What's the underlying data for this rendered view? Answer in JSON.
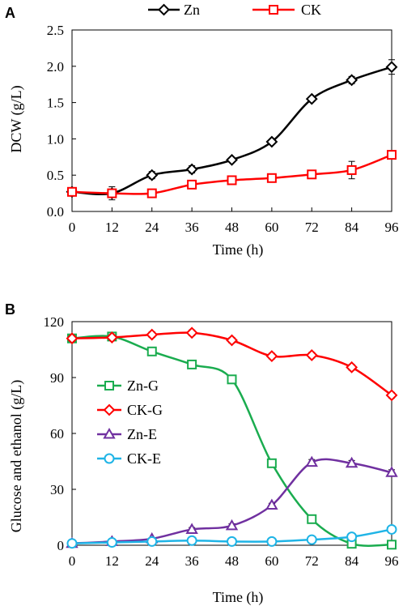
{
  "chart_data": [
    {
      "panel": "A",
      "type": "line",
      "xlabel": "Time (h)",
      "ylabel": "DCW (g/L)",
      "xlim": [
        0,
        96
      ],
      "ylim": [
        0,
        2.5
      ],
      "xticks": [
        0,
        12,
        24,
        36,
        48,
        60,
        72,
        84,
        96
      ],
      "yticks": [
        "0.0",
        "0.5",
        "1.0",
        "1.5",
        "2.0",
        "2.5"
      ],
      "grid": false,
      "legend_position": "top",
      "series": [
        {
          "name": "Zn",
          "color": "#000000",
          "marker": "diamond",
          "x": [
            0,
            12,
            24,
            36,
            48,
            60,
            72,
            84,
            96
          ],
          "y": [
            0.27,
            0.25,
            0.5,
            0.58,
            0.71,
            0.96,
            1.55,
            1.81,
            1.99
          ],
          "err": [
            0.03,
            0.09,
            0.05,
            0.05,
            0.03,
            0.03,
            0.03,
            0.05,
            0.1
          ]
        },
        {
          "name": "CK",
          "color": "#ff0000",
          "marker": "square",
          "x": [
            0,
            12,
            24,
            36,
            48,
            60,
            72,
            84,
            96
          ],
          "y": [
            0.27,
            0.25,
            0.25,
            0.37,
            0.43,
            0.46,
            0.51,
            0.57,
            0.78
          ],
          "err": [
            0.03,
            0.05,
            0.03,
            0.04,
            0.03,
            0.03,
            0.03,
            0.12,
            0.03
          ]
        }
      ]
    },
    {
      "panel": "B",
      "type": "line",
      "xlabel": "Time (h)",
      "ylabel": "Glucose and ethanol (g/L)",
      "xlim": [
        0,
        96
      ],
      "ylim": [
        0,
        120
      ],
      "xticks": [
        0,
        12,
        24,
        36,
        48,
        60,
        72,
        84,
        96
      ],
      "yticks": [
        "0",
        "30",
        "60",
        "90",
        "120"
      ],
      "grid": false,
      "legend_position": "middle-left",
      "series": [
        {
          "name": "Zn-G",
          "color": "#1aac4f",
          "marker": "square",
          "x": [
            0,
            12,
            24,
            36,
            48,
            60,
            72,
            84,
            96
          ],
          "y": [
            111,
            112,
            104,
            97,
            89,
            44,
            14,
            0.8,
            0.3
          ],
          "err": [
            2,
            2,
            2,
            2,
            2,
            2,
            2,
            0.5,
            0.5
          ]
        },
        {
          "name": "CK-G",
          "color": "#ff0000",
          "marker": "diamond",
          "x": [
            0,
            12,
            24,
            36,
            48,
            60,
            72,
            84,
            96
          ],
          "y": [
            111,
            111.5,
            113,
            114,
            110,
            101.5,
            102,
            95.5,
            80.5
          ],
          "err": [
            1.5,
            1.5,
            1.5,
            1.5,
            1.5,
            1.5,
            1.5,
            1.5,
            1.5
          ]
        },
        {
          "name": "Zn-E",
          "color": "#7030a0",
          "marker": "triangle",
          "x": [
            0,
            12,
            24,
            36,
            48,
            60,
            72,
            84,
            96
          ],
          "y": [
            1,
            2,
            3.5,
            8.5,
            10.5,
            21.5,
            44.5,
            44,
            39
          ],
          "err": [
            0.5,
            0.5,
            0.5,
            1,
            1,
            1,
            1.5,
            1.5,
            1.5
          ]
        },
        {
          "name": "CK-E",
          "color": "#1fb4e6",
          "marker": "circle",
          "x": [
            0,
            12,
            24,
            36,
            48,
            60,
            72,
            84,
            96
          ],
          "y": [
            1,
            1.5,
            2,
            2.5,
            2,
            2,
            3,
            4.5,
            8.5
          ],
          "err": [
            0.5,
            0.5,
            0.5,
            0.5,
            0.5,
            0.5,
            0.5,
            0.5,
            0.5
          ]
        }
      ]
    }
  ]
}
